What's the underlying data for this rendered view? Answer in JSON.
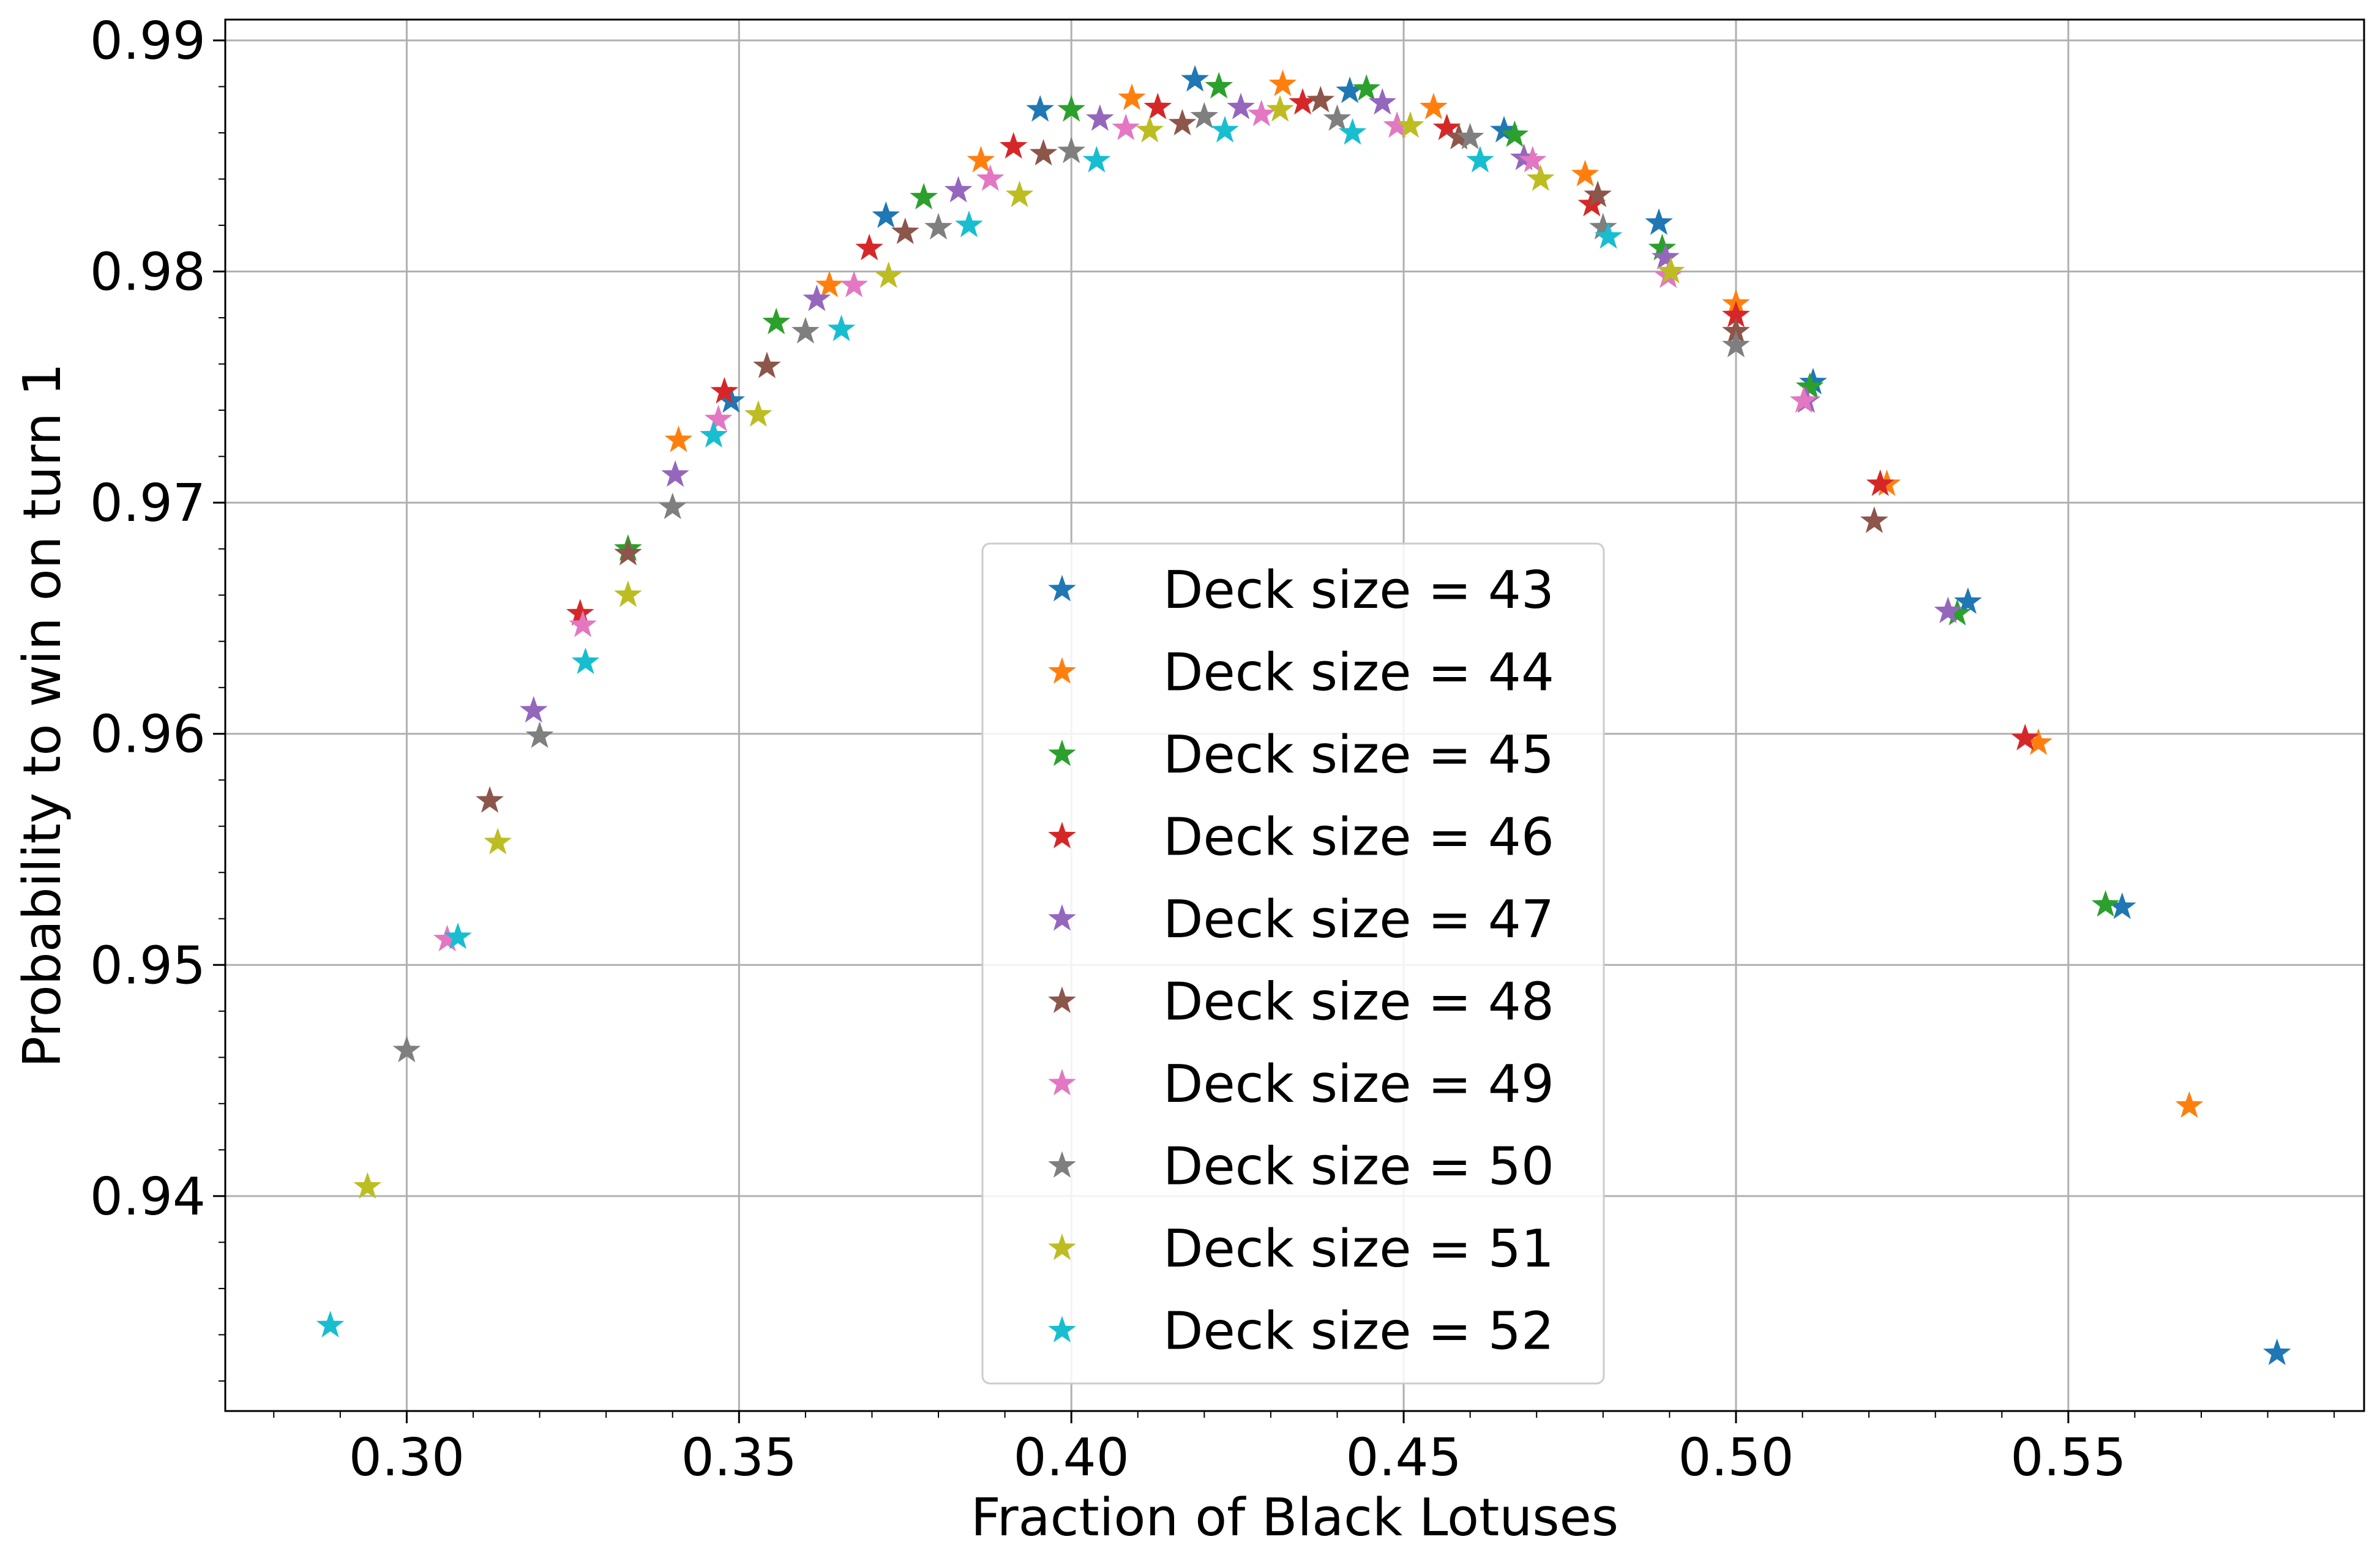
{
  "chart_data": {
    "type": "scatter",
    "marker": "star",
    "title": "",
    "xlabel": "Fraction of Black Lotuses",
    "ylabel": "Probability to win on turn 1",
    "xlim": [
      0.2727,
      0.5945
    ],
    "ylim": [
      0.9307,
      0.9909
    ],
    "xticks": [
      0.3,
      0.35,
      0.4,
      0.45,
      0.5,
      0.55
    ],
    "xtick_labels": [
      "0.30",
      "0.35",
      "0.40",
      "0.45",
      "0.50",
      "0.55"
    ],
    "yticks": [
      0.94,
      0.95,
      0.96,
      0.97,
      0.98,
      0.99
    ],
    "ytick_labels": [
      "0.94",
      "0.95",
      "0.96",
      "0.97",
      "0.98",
      "0.99"
    ],
    "grid": true,
    "minor_ticks": true,
    "legend_position": "center",
    "series": [
      {
        "name": "Deck size = 43",
        "color": "#1f77b4",
        "x": [
          0.3488,
          0.3721,
          0.3953,
          0.4186,
          0.4419,
          0.4651,
          0.4884,
          0.5116,
          0.5349,
          0.5581,
          0.5814
        ],
        "y": [
          0.9744,
          0.9824,
          0.987,
          0.9883,
          0.9878,
          0.9861,
          0.9821,
          0.9752,
          0.9657,
          0.9525,
          0.9332
        ]
      },
      {
        "name": "Deck size = 44",
        "color": "#ff7f0e",
        "x": [
          0.3409,
          0.3636,
          0.3864,
          0.4091,
          0.4318,
          0.4545,
          0.4773,
          0.5,
          0.5227,
          0.5455,
          0.5682
        ],
        "y": [
          0.9727,
          0.9794,
          0.9848,
          0.9875,
          0.9881,
          0.9871,
          0.9842,
          0.9786,
          0.9708,
          0.9596,
          0.9439
        ]
      },
      {
        "name": "Deck size = 45",
        "color": "#2ca02c",
        "x": [
          0.3333,
          0.3556,
          0.3778,
          0.4,
          0.4222,
          0.4444,
          0.4667,
          0.4889,
          0.5111,
          0.5333,
          0.5556
        ],
        "y": [
          0.968,
          0.9778,
          0.9832,
          0.987,
          0.988,
          0.9879,
          0.9859,
          0.981,
          0.975,
          0.9652,
          0.9526
        ]
      },
      {
        "name": "Deck size = 46",
        "color": "#d62728",
        "x": [
          0.3261,
          0.3478,
          0.3696,
          0.3913,
          0.413,
          0.4348,
          0.4565,
          0.4783,
          0.5,
          0.5217,
          0.5435
        ],
        "y": [
          0.9652,
          0.9748,
          0.981,
          0.9854,
          0.9871,
          0.9873,
          0.9862,
          0.9829,
          0.9781,
          0.9708,
          0.9598
        ]
      },
      {
        "name": "Deck size = 47",
        "color": "#9467bd",
        "x": [
          0.3191,
          0.3404,
          0.3617,
          0.383,
          0.4043,
          0.4255,
          0.4468,
          0.4681,
          0.4894,
          0.5106,
          0.5319
        ],
        "y": [
          0.961,
          0.9712,
          0.9788,
          0.9835,
          0.9866,
          0.9871,
          0.9873,
          0.9849,
          0.9806,
          0.9744,
          0.9653
        ]
      },
      {
        "name": "Deck size = 48",
        "color": "#8c564b",
        "x": [
          0.3125,
          0.3333,
          0.3542,
          0.375,
          0.3958,
          0.4167,
          0.4375,
          0.4583,
          0.4792,
          0.5,
          0.5208
        ],
        "y": [
          0.9571,
          0.9678,
          0.9759,
          0.9817,
          0.9851,
          0.9864,
          0.9874,
          0.9858,
          0.9833,
          0.9774,
          0.9692
        ]
      },
      {
        "name": "Deck size = 49",
        "color": "#e377c2",
        "x": [
          0.3061,
          0.3265,
          0.3469,
          0.3673,
          0.3878,
          0.4082,
          0.4286,
          0.449,
          0.4694,
          0.4898,
          0.5102
        ],
        "y": [
          0.9511,
          0.9647,
          0.9736,
          0.9794,
          0.984,
          0.9862,
          0.9868,
          0.9863,
          0.9848,
          0.9798,
          0.9744
        ]
      },
      {
        "name": "Deck size = 50",
        "color": "#7f7f7f",
        "x": [
          0.3,
          0.32,
          0.34,
          0.36,
          0.38,
          0.4,
          0.42,
          0.44,
          0.46,
          0.48,
          0.5
        ],
        "y": [
          0.9463,
          0.9599,
          0.9698,
          0.9774,
          0.9819,
          0.9852,
          0.9867,
          0.9866,
          0.9858,
          0.9819,
          0.9768
        ]
      },
      {
        "name": "Deck size = 51",
        "color": "#bcbd22",
        "x": [
          0.2941,
          0.3137,
          0.3333,
          0.3529,
          0.3725,
          0.3922,
          0.4118,
          0.4314,
          0.451,
          0.4706,
          0.4902
        ],
        "y": [
          0.9404,
          0.9553,
          0.966,
          0.9738,
          0.9798,
          0.9833,
          0.9861,
          0.987,
          0.9863,
          0.984,
          0.98
        ]
      },
      {
        "name": "Deck size = 52",
        "color": "#17becf",
        "x": [
          0.2885,
          0.3077,
          0.3269,
          0.3462,
          0.3654,
          0.3846,
          0.4038,
          0.4231,
          0.4423,
          0.4615,
          0.4808
        ],
        "y": [
          0.9344,
          0.9512,
          0.9631,
          0.9729,
          0.9775,
          0.982,
          0.9848,
          0.9861,
          0.986,
          0.9848,
          0.9815
        ]
      }
    ]
  }
}
